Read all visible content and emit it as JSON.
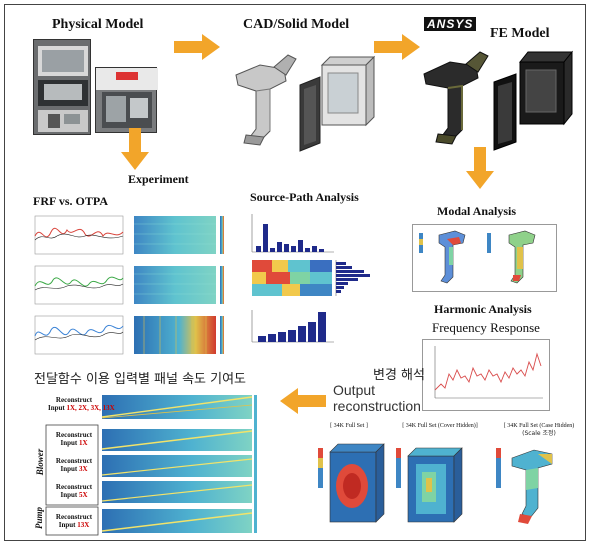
{
  "headings": {
    "physical_model": "Physical Model",
    "cad_model": "CAD/Solid Model",
    "fe_model": "FE  Model",
    "ansys_logo": "ANSYS",
    "experiment": "Experiment",
    "frf_otpa": "FRF vs. OTPA",
    "source_path": "Source-Path  Analysis",
    "modal": "Modal  Analysis",
    "harmonic": "Harmonic Analysis",
    "frequency_response": "Frequency Response"
  },
  "korean": {
    "change_analysis": "변경 해석",
    "panel_contribution": "전달함수 이용 입력별 패널 속도 기여도"
  },
  "output_reconstruction": [
    "Output",
    "reconstruction"
  ],
  "fe_views": {
    "full_set": "[ 34K Full Set ]",
    "cover_hidden": "[ 34K Full Set (Cover Hidden)]",
    "case_hidden_line1": "[ 34K Full Set (Case Hidden)",
    "case_hidden_line2": "(Scale 조정)"
  },
  "reconstruct": {
    "title": [
      "Reconstruct",
      "Input"
    ],
    "rows": [
      {
        "inputs": "1X, 2X, 3X, 13X"
      },
      {
        "inputs": "1X"
      },
      {
        "inputs": "3X"
      },
      {
        "inputs": "5X"
      },
      {
        "inputs": "13X"
      }
    ],
    "group_blower": "Blower",
    "group_pump": "Pump"
  },
  "colors": {
    "arrow": "#f2a52a",
    "frf_red": "#d9433a",
    "frf_green": "#3aa845",
    "frf_blue": "#3b83d6",
    "spectrogram_cyan": "#5fc3cf",
    "bar_navy": "#1f2a8a",
    "harmonic_line": "#d94c4c"
  }
}
